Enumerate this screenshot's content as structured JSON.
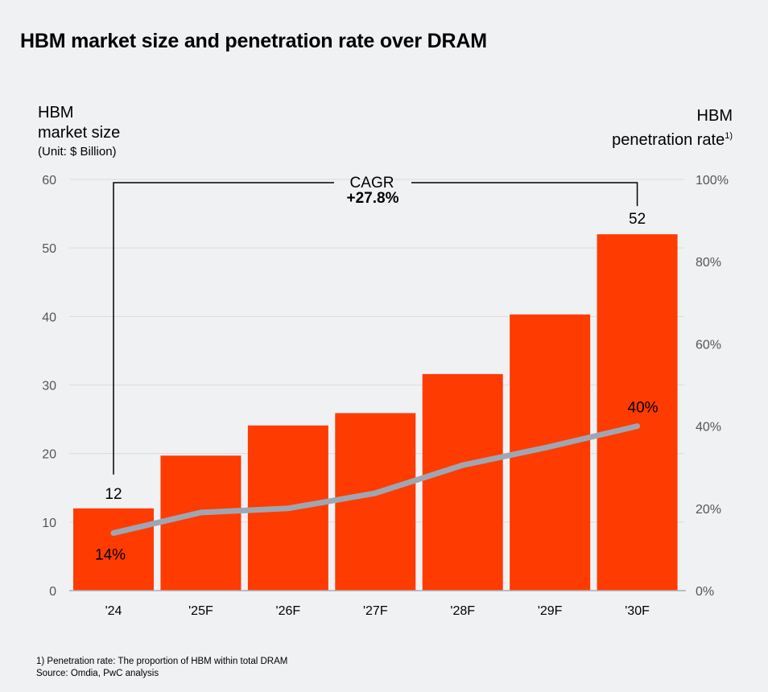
{
  "chart_data": {
    "type": "bar+line",
    "title": "HBM market size and penetration rate over DRAM",
    "categories": [
      "'24",
      "'25F",
      "'26F",
      "'27F",
      "'28F",
      "'29F",
      "'30F"
    ],
    "series": [
      {
        "name": "HBM market size",
        "type": "bar",
        "axis": "left",
        "unit": "$ Billion",
        "values": [
          12,
          19.7,
          24.1,
          25.9,
          31.6,
          40.3,
          52
        ]
      },
      {
        "name": "HBM penetration rate",
        "type": "line",
        "axis": "right",
        "unit": "%",
        "values": [
          14,
          19,
          20,
          23.7,
          30.5,
          35,
          40
        ]
      }
    ],
    "left_axis": {
      "label_line1": "HBM",
      "label_line2": "market size",
      "unit_label": "(Unit: $ Billion)",
      "ylim": [
        0,
        60
      ],
      "ticks": [
        "0",
        "10",
        "20",
        "30",
        "40",
        "50",
        "60"
      ]
    },
    "right_axis": {
      "label_line1": "HBM",
      "label_line2": "penetration rate",
      "footnote_mark": "1)",
      "ylim": [
        0,
        100
      ],
      "ticks": [
        "0%",
        "20%",
        "40%",
        "60%",
        "80%",
        "100%"
      ]
    },
    "data_labels": {
      "bar_first": "12",
      "bar_last": "52",
      "line_first": "14%",
      "line_last": "40%"
    },
    "annotation": {
      "label": "CAGR",
      "value": "+27.8%"
    },
    "grid": true,
    "colors": {
      "bar": "#fe3b00",
      "line": "#a0a6b1",
      "background": "#f0f1f3",
      "grid": "#d9dbe0",
      "axis_text": "#555555"
    }
  },
  "footer": {
    "note": "1) Penetration rate: The proportion of HBM within total DRAM",
    "source": "Source: Omdia, PwC analysis"
  }
}
